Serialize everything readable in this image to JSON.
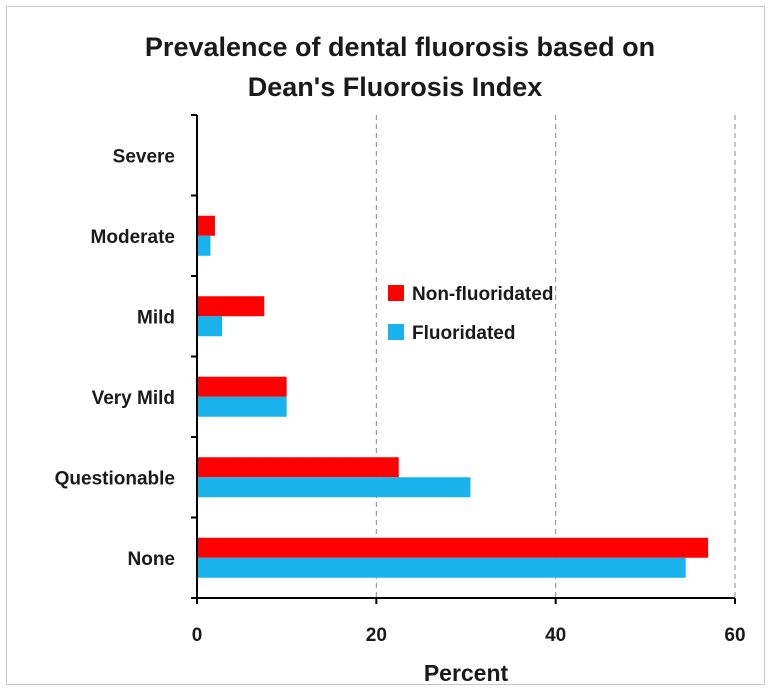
{
  "chart_data": {
    "type": "bar",
    "orientation": "horizontal",
    "title": "Prevalence of dental fluorosis based on Dean's Fluorosis  Index",
    "title_lines": [
      "Prevalence of dental fluorosis based on",
      "Dean's Fluorosis  Index"
    ],
    "xlabel": "Percent",
    "ylabel": "",
    "categories": [
      "Severe",
      "Moderate",
      "Mild",
      "Very Mild",
      "Questionable",
      "None"
    ],
    "series": [
      {
        "name": "Non-fluoridated",
        "color": "#ff0000",
        "values": [
          0,
          2,
          7.5,
          10,
          22.5,
          57
        ]
      },
      {
        "name": "Fluoridated",
        "color": "#1ab2ec",
        "values": [
          0,
          1.5,
          2.8,
          10,
          30.5,
          54.5
        ]
      }
    ],
    "xlim": [
      0,
      60
    ],
    "xticks": [
      0,
      20,
      40,
      60
    ],
    "grid": "vertical dashed",
    "legend_position": "center-right"
  }
}
